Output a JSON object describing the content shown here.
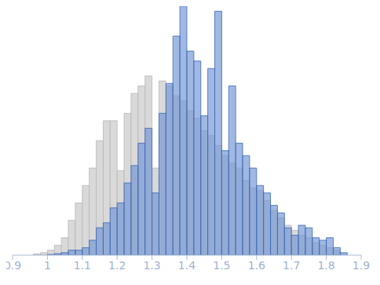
{
  "chart_data": {
    "type": "histogram",
    "bins": [
      0.96,
      0.98,
      1.0,
      1.02,
      1.04,
      1.06,
      1.08,
      1.1,
      1.12,
      1.14,
      1.16,
      1.18,
      1.2,
      1.22,
      1.24,
      1.26,
      1.28,
      1.3,
      1.32,
      1.34,
      1.36,
      1.38,
      1.4,
      1.42,
      1.44,
      1.46,
      1.48,
      1.5,
      1.52,
      1.54,
      1.56,
      1.58,
      1.6,
      1.62,
      1.64,
      1.66,
      1.68,
      1.7,
      1.72,
      1.74,
      1.76,
      1.78,
      1.8,
      1.82,
      1.84,
      1.86
    ],
    "series": [
      {
        "color": "#d9d9d9",
        "values": [
          0.5,
          1,
          2,
          4,
          7,
          14,
          21,
          28,
          35,
          46,
          54,
          54,
          34,
          57,
          65,
          68,
          72,
          35,
          70,
          68,
          64,
          62,
          58,
          55,
          50,
          48,
          44,
          40,
          37,
          35,
          30,
          27,
          26,
          22,
          18,
          15,
          12,
          10,
          8,
          7,
          5,
          4,
          3,
          2,
          0
        ]
      },
      {
        "color": "#6f93d2",
        "values": [
          0,
          0,
          0.3,
          0.6,
          1,
          2,
          2,
          3,
          6,
          11,
          13,
          19,
          21,
          29,
          36,
          45,
          51,
          25,
          57,
          69,
          88,
          100,
          82,
          78,
          56,
          75,
          98,
          42,
          68,
          45,
          40,
          35,
          28,
          25,
          20,
          17,
          11,
          8,
          12,
          11,
          7,
          6,
          7,
          3,
          1
        ]
      }
    ],
    "xlim": [
      0.9,
      1.9
    ],
    "xticks": [
      0.9,
      1,
      1.1,
      1.2,
      1.3,
      1.4,
      1.5,
      1.6,
      1.7,
      1.8,
      1.9
    ],
    "ylim": [
      0,
      100
    ],
    "tick_labels": "x"
  }
}
